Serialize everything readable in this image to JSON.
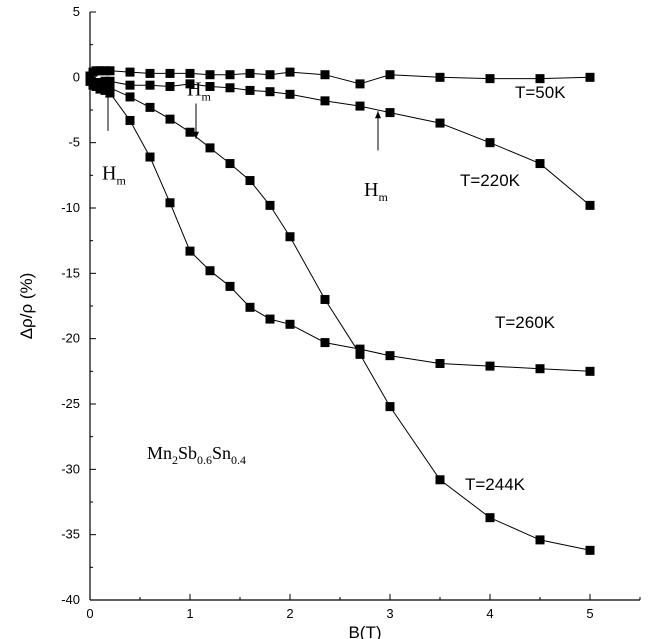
{
  "chart_data": {
    "type": "line",
    "xlabel": "B(T)",
    "ylabel": "Δρ/ρ (%)",
    "xlim": [
      0,
      5.5
    ],
    "ylim": [
      -40,
      5
    ],
    "x_ticks": [
      0,
      1,
      2,
      3,
      4,
      5
    ],
    "y_ticks": [
      5,
      0,
      -5,
      -10,
      -15,
      -20,
      -25,
      -30,
      -35,
      -40
    ],
    "grid": false,
    "legend": "none",
    "marker": "square",
    "series": [
      {
        "name": "T=50K",
        "x": [
          0,
          0.03,
          0.06,
          0.1,
          0.15,
          0.2,
          0.4,
          0.6,
          0.8,
          1.0,
          1.2,
          1.4,
          1.6,
          1.8,
          2.0,
          2.35,
          2.7,
          3.0,
          3.5,
          4.0,
          4.5,
          5.0
        ],
        "y": [
          0.1,
          0.4,
          0.5,
          0.5,
          0.5,
          0.5,
          0.4,
          0.3,
          0.3,
          0.3,
          0.2,
          0.2,
          0.3,
          0.2,
          0.4,
          0.2,
          -0.5,
          0.2,
          0.0,
          -0.1,
          -0.1,
          0.0
        ]
      },
      {
        "name": "T=220K",
        "x": [
          0,
          0.03,
          0.06,
          0.1,
          0.15,
          0.2,
          0.4,
          0.6,
          0.8,
          1.0,
          1.2,
          1.4,
          1.6,
          1.8,
          2.0,
          2.35,
          2.7,
          3.0,
          3.5,
          4.0,
          4.5,
          5.0
        ],
        "y": [
          -0.3,
          -0.4,
          -0.4,
          -0.4,
          -0.3,
          -0.3,
          -0.6,
          -0.6,
          -0.7,
          -0.5,
          -0.7,
          -0.8,
          -1.0,
          -1.1,
          -1.3,
          -1.8,
          -2.2,
          -2.7,
          -3.5,
          -5.0,
          -6.6,
          -9.8
        ]
      },
      {
        "name": "T=260K",
        "x": [
          0,
          0.03,
          0.06,
          0.1,
          0.15,
          0.2,
          0.4,
          0.6,
          0.8,
          1.0,
          1.2,
          1.4,
          1.6,
          1.8,
          2.0,
          2.35,
          2.7,
          3.0,
          3.5,
          4.0,
          4.5,
          5.0
        ],
        "y": [
          -0.3,
          -0.6,
          -0.7,
          -0.9,
          -1.0,
          -1.2,
          -3.3,
          -6.1,
          -9.6,
          -13.3,
          -14.8,
          -16.0,
          -17.6,
          -18.5,
          -18.9,
          -20.3,
          -20.8,
          -21.3,
          -21.9,
          -22.1,
          -22.3,
          -22.5
        ]
      },
      {
        "name": "T=244K",
        "x": [
          0,
          0.03,
          0.06,
          0.1,
          0.15,
          0.2,
          0.4,
          0.6,
          0.8,
          1.0,
          1.2,
          1.4,
          1.6,
          1.8,
          2.0,
          2.35,
          2.7,
          3.0,
          3.5,
          4.0,
          4.5,
          5.0
        ],
        "y": [
          -0.2,
          -0.4,
          -0.5,
          -0.6,
          -0.7,
          -0.8,
          -1.5,
          -2.3,
          -3.2,
          -4.2,
          -5.4,
          -6.6,
          -7.9,
          -9.8,
          -12.2,
          -17.0,
          -21.2,
          -25.2,
          -30.8,
          -33.7,
          -35.4,
          -36.2
        ]
      }
    ],
    "series_labels": [
      {
        "text": "T=50K",
        "x": 4.25,
        "y": -1.6
      },
      {
        "text": "T=220K",
        "x": 3.7,
        "y": -8.3
      },
      {
        "text": "T=260K",
        "x": 4.05,
        "y": -19.2
      },
      {
        "text": "T=244K",
        "x": 3.75,
        "y": -31.6
      }
    ],
    "annotations": [
      {
        "label": "H",
        "subscript": "m",
        "arrow_x": 0.18,
        "arrow_y0": -4.1,
        "arrow_y1": -1.0,
        "text_x": 0.12,
        "text_y": -7.8
      },
      {
        "label": "H",
        "subscript": "m",
        "arrow_x": 1.06,
        "arrow_y0": -2.0,
        "arrow_y1": -4.7,
        "text_x": 0.97,
        "text_y": -1.4
      },
      {
        "label": "H",
        "subscript": "m",
        "arrow_x": 2.88,
        "arrow_y0": -5.6,
        "arrow_y1": -2.6,
        "text_x": 2.74,
        "text_y": -9.1
      }
    ],
    "compound": {
      "parts": [
        {
          "t": "Mn",
          "sub": false
        },
        {
          "t": "2",
          "sub": true
        },
        {
          "t": "Sb",
          "sub": false
        },
        {
          "t": "0.6",
          "sub": true
        },
        {
          "t": "Sn",
          "sub": false
        },
        {
          "t": "0.4",
          "sub": true
        }
      ],
      "x": 0.57,
      "y": -29.2
    }
  }
}
